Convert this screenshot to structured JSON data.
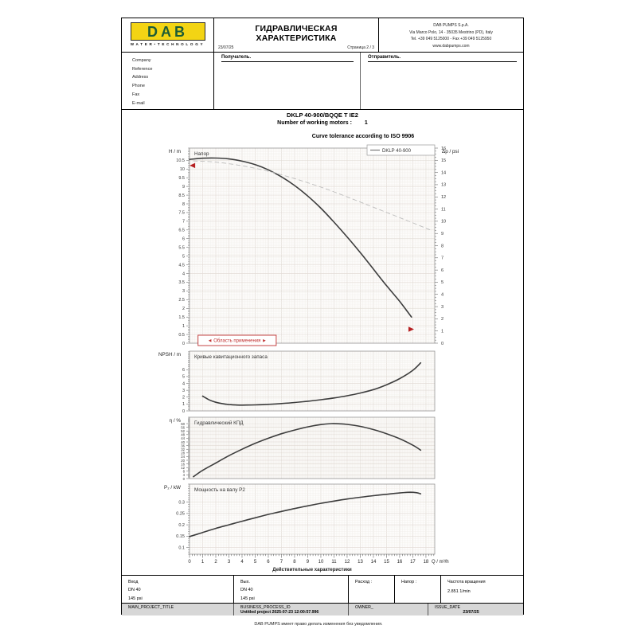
{
  "header": {
    "logo_text": "DAB",
    "logo_subtext": "WATER•TECHNOLOGY",
    "title": "ГИДРАВЛИЧЕСКАЯ ХАРАКТЕРИСТИКА",
    "date": "23/07/25",
    "page": "Страница 2 / 3",
    "company_lines": [
      "DAB PUMPS S.p.A.",
      "Via Marco Polo, 14 - 35035 Mestrino (PD), Italy",
      "Tel. +39 049 5125000 - Fax +39 049 5125950",
      "www.dabpumps.com"
    ]
  },
  "form": {
    "fields": [
      "Company",
      "Reference",
      "Address",
      "Phone",
      "Fax",
      "E-mail"
    ],
    "recipient_label": "Получатель.",
    "sender_label": "Отправитель."
  },
  "pump": {
    "model": "DKLP 40-900/BQQE T IE2",
    "motors_label": "Number of working motors :",
    "motors_value": "1",
    "tolerance": "Curve tolerance according to ISO 9906"
  },
  "x_axis": {
    "ticks": [
      0,
      1,
      2,
      3,
      4,
      5,
      6,
      7,
      8,
      9,
      10,
      11,
      12,
      13,
      14,
      15,
      16,
      17,
      18
    ],
    "unit": "Q / m³/h",
    "caption": "Действительные характеристики"
  },
  "chart_data": [
    {
      "id": "head",
      "type": "line",
      "inner_title": "Напор",
      "ylabel": "H / m",
      "y2label": "Δp / psi",
      "xlim": [
        0,
        18.67
      ],
      "ylim": [
        0,
        11.2
      ],
      "yticks": [
        0,
        0.5,
        1,
        1.5,
        2,
        2.5,
        3,
        3.5,
        4,
        4.5,
        5,
        5.5,
        6,
        6.5,
        7,
        7.5,
        8,
        8.5,
        9,
        9.5,
        10,
        10.5
      ],
      "y2lim": [
        0,
        16
      ],
      "y2ticks": [
        0,
        1,
        2,
        3,
        4,
        5,
        6,
        7,
        8,
        9,
        10,
        11,
        12,
        13,
        14,
        15
      ],
      "legend": {
        "label": "DKLP 40-900"
      },
      "range_box": {
        "label": "◄ Область применения ►",
        "q_from": 0.65,
        "q_to": 6.6
      },
      "markers": [
        {
          "q": 0.25,
          "v": 10.2,
          "dir": "left"
        },
        {
          "q": 16.85,
          "v": 0.8,
          "dir": "right"
        }
      ],
      "series": [
        {
          "name": "DKLP 40-900",
          "axis": "y",
          "style": "solid",
          "points": [
            [
              0,
              10.55
            ],
            [
              1,
              10.62
            ],
            [
              2,
              10.63
            ],
            [
              3,
              10.58
            ],
            [
              4,
              10.45
            ],
            [
              5,
              10.25
            ],
            [
              6,
              9.95
            ],
            [
              7,
              9.55
            ],
            [
              8,
              9.05
            ],
            [
              9,
              8.45
            ],
            [
              10,
              7.75
            ],
            [
              11,
              6.95
            ],
            [
              12,
              6.1
            ],
            [
              13,
              5.2
            ],
            [
              14,
              4.25
            ],
            [
              15,
              3.3
            ],
            [
              16,
              2.4
            ],
            [
              16.9,
              1.5
            ]
          ]
        },
        {
          "name": "Δp",
          "axis": "y2",
          "style": "dashed",
          "points": [
            [
              0.3,
              14.95
            ],
            [
              2,
              14.85
            ],
            [
              4,
              14.55
            ],
            [
              6,
              14.1
            ],
            [
              8,
              13.5
            ],
            [
              10,
              12.8
            ],
            [
              12,
              12.0
            ],
            [
              14,
              11.15
            ],
            [
              16,
              10.3
            ],
            [
              18.3,
              9.3
            ]
          ]
        }
      ]
    },
    {
      "id": "npsh",
      "type": "line",
      "inner_title": "Кривые кавитационного запаса",
      "ylabel": "NPSH / m",
      "xlim": [
        0,
        18.67
      ],
      "ylim": [
        0,
        8.7
      ],
      "yticks": [
        0,
        1,
        2,
        3,
        4,
        5,
        6
      ],
      "series": [
        {
          "name": "NPSH",
          "axis": "y",
          "style": "solid",
          "points": [
            [
              1,
              2.15
            ],
            [
              1.5,
              1.6
            ],
            [
              2,
              1.25
            ],
            [
              2.5,
              1.05
            ],
            [
              3,
              0.92
            ],
            [
              3.5,
              0.86
            ],
            [
              4,
              0.84
            ],
            [
              5,
              0.87
            ],
            [
              6,
              0.95
            ],
            [
              7,
              1.07
            ],
            [
              8,
              1.22
            ],
            [
              9,
              1.4
            ],
            [
              10,
              1.62
            ],
            [
              11,
              1.88
            ],
            [
              12,
              2.2
            ],
            [
              13,
              2.6
            ],
            [
              14,
              3.1
            ],
            [
              15,
              3.8
            ],
            [
              16,
              4.7
            ],
            [
              17,
              5.9
            ],
            [
              17.6,
              7.0
            ]
          ]
        }
      ]
    },
    {
      "id": "eta",
      "type": "line",
      "inner_title": "Гидравлический КПД",
      "ylabel": "η / %",
      "xlim": [
        0,
        18.67
      ],
      "ylim": [
        0,
        67
      ],
      "yticks": [
        0,
        4,
        8,
        12,
        16,
        20,
        24,
        28,
        32,
        36,
        40,
        44,
        48,
        52,
        56,
        60
      ],
      "series": [
        {
          "name": "η",
          "axis": "y",
          "style": "solid",
          "points": [
            [
              0.3,
              2
            ],
            [
              1,
              9
            ],
            [
              2,
              17
            ],
            [
              3,
              25
            ],
            [
              4,
              32
            ],
            [
              5,
              38.5
            ],
            [
              6,
              44
            ],
            [
              7,
              49
            ],
            [
              8,
              53
            ],
            [
              9,
              56.5
            ],
            [
              10,
              59
            ],
            [
              10.8,
              60
            ],
            [
              11.5,
              59.8
            ],
            [
              12,
              59.2
            ],
            [
              13,
              57
            ],
            [
              14,
              53.5
            ],
            [
              15,
              49
            ],
            [
              16,
              43.5
            ],
            [
              17,
              36.5
            ],
            [
              17.6,
              31
            ]
          ]
        }
      ]
    },
    {
      "id": "power",
      "type": "line",
      "inner_title": "Мощность на валу P2",
      "ylabel": "P₂ / kW",
      "xlim": [
        0,
        18.67
      ],
      "ylim": [
        0.07,
        0.38
      ],
      "yticks": [
        0.1,
        0.15,
        0.2,
        0.25,
        0.3
      ],
      "series": [
        {
          "name": "P2",
          "axis": "y",
          "style": "solid",
          "points": [
            [
              0,
              0.148
            ],
            [
              1,
              0.166
            ],
            [
              2,
              0.184
            ],
            [
              3,
              0.2
            ],
            [
              4,
              0.216
            ],
            [
              5,
              0.231
            ],
            [
              6,
              0.246
            ],
            [
              7,
              0.259
            ],
            [
              8,
              0.272
            ],
            [
              9,
              0.284
            ],
            [
              10,
              0.295
            ],
            [
              11,
              0.305
            ],
            [
              12,
              0.314
            ],
            [
              13,
              0.322
            ],
            [
              14,
              0.329
            ],
            [
              15,
              0.335
            ],
            [
              16,
              0.341
            ],
            [
              16.8,
              0.344
            ],
            [
              17.3,
              0.342
            ],
            [
              17.6,
              0.337
            ]
          ]
        }
      ]
    }
  ],
  "footer_table": {
    "inlet_title": "Вход",
    "inlet_dn": "DN 40",
    "inlet_pressure": "145 psi",
    "outlet_title": "Вых.",
    "outlet_dn": "DN 40",
    "outlet_pressure": "145 psi",
    "flow_label": "Расход :",
    "head_label": "Напор :",
    "speed_label": "Частота вращения",
    "speed_value": "2.851 1/min"
  },
  "footer_bar": {
    "project_label": "MAIN_PROJECT_TITLE",
    "process_label": "BUSINESS_PROCESS_ID",
    "process_value": "Untitled project 2025-07-23 12:00:57.996",
    "owner_label": "OWNER_",
    "issue_label": "ISSUE_DATE",
    "issue_value": "23/07/25"
  },
  "disclaimer": "DAB PUMPS имеет право делать изменения без уведомления."
}
